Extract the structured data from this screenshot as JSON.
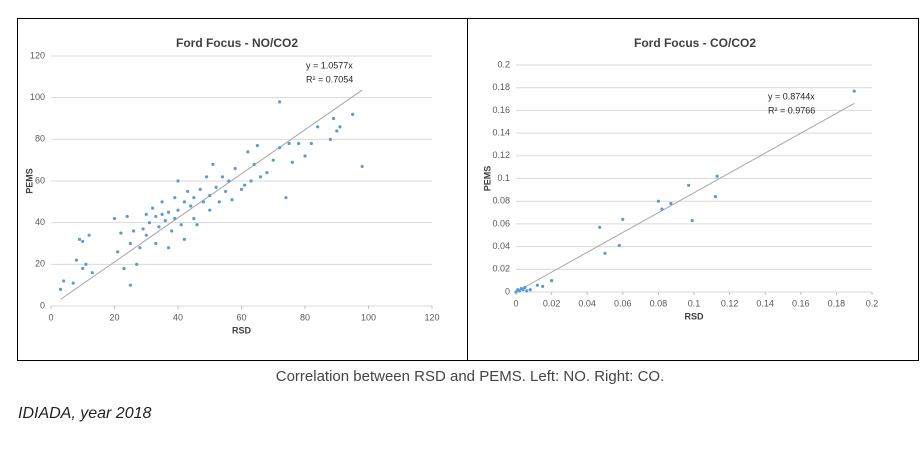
{
  "chart_data": [
    {
      "type": "scatter",
      "title": "Ford Focus - NO/CO2",
      "x_label": "RSD",
      "y_label": "PEMS",
      "x": [
        3,
        4,
        7,
        8,
        9,
        10,
        10,
        11,
        12,
        13,
        20,
        21,
        22,
        23,
        24,
        25,
        25,
        26,
        27,
        28,
        29,
        30,
        30,
        31,
        32,
        33,
        33,
        34,
        35,
        35,
        36,
        37,
        37,
        38,
        39,
        39,
        40,
        40,
        41,
        42,
        42,
        43,
        44,
        45,
        45,
        46,
        47,
        48,
        49,
        50,
        50,
        51,
        52,
        53,
        54,
        55,
        56,
        57,
        58,
        60,
        61,
        62,
        63,
        64,
        65,
        66,
        68,
        70,
        72,
        72,
        74,
        75,
        76,
        78,
        80,
        82,
        84,
        88,
        89,
        90,
        91,
        95,
        98
      ],
      "values": [
        8,
        12,
        11,
        22,
        32,
        31,
        18,
        20,
        34,
        16,
        42,
        26,
        35,
        18,
        43,
        10,
        30,
        36,
        20,
        28,
        37,
        44,
        34,
        40,
        47,
        43,
        30,
        38,
        44,
        50,
        41,
        45,
        28,
        36,
        52,
        42,
        46,
        60,
        39,
        50,
        32,
        55,
        48,
        52,
        42,
        39,
        56,
        50,
        62,
        53,
        46,
        68,
        57,
        50,
        62,
        55,
        60,
        51,
        66,
        56,
        58,
        74,
        60,
        68,
        77,
        62,
        64,
        70,
        76,
        98,
        52,
        78,
        69,
        78,
        72,
        78,
        86,
        80,
        90,
        84,
        86,
        92,
        67
      ],
      "color": "#5b9bd5",
      "trendline": {
        "slope": 1.0577,
        "color": "#a6a6a6"
      },
      "annotations": [
        "y = 1.0577x",
        "R² = 0.7054"
      ],
      "xlim": [
        0,
        120
      ],
      "xticks": [
        0,
        20,
        40,
        60,
        80,
        100,
        120
      ],
      "ylim": [
        0,
        120
      ],
      "yticks": [
        0,
        20,
        40,
        60,
        80,
        100,
        120
      ],
      "grid": true
    },
    {
      "type": "scatter",
      "title": "Ford Focus - CO/CO2",
      "x_label": "RSD",
      "y_label": "PEMS",
      "x": [
        0,
        0.001,
        0.002,
        0.003,
        0.004,
        0.005,
        0.006,
        0.008,
        0.012,
        0.015,
        0.02,
        0.047,
        0.05,
        0.058,
        0.06,
        0.08,
        0.082,
        0.087,
        0.097,
        0.099,
        0.112,
        0.113,
        0.19
      ],
      "values": [
        0,
        0.002,
        0.001,
        0.003,
        0.002,
        0.004,
        0.001,
        0.002,
        0.006,
        0.005,
        0.01,
        0.057,
        0.034,
        0.041,
        0.064,
        0.08,
        0.073,
        0.078,
        0.094,
        0.063,
        0.084,
        0.102,
        0.177
      ],
      "color": "#5b9bd5",
      "trendline": {
        "slope": 0.8744,
        "color": "#a6a6a6"
      },
      "annotations": [
        "y = 0.8744x",
        "R² = 0.9766"
      ],
      "xlim": [
        0,
        0.2
      ],
      "xticks": [
        0,
        0.02,
        0.04,
        0.06,
        0.08,
        0.1,
        0.12,
        0.14,
        0.16,
        0.18,
        0.2
      ],
      "ylim": [
        0,
        0.2
      ],
      "yticks": [
        0,
        0.02,
        0.04,
        0.06,
        0.08,
        0.1,
        0.12,
        0.14,
        0.16,
        0.18,
        0.2
      ],
      "grid": true
    }
  ],
  "caption": "Correlation between RSD and PEMS. Left: NO. Right: CO.",
  "source": "IDIADA, year 2018"
}
